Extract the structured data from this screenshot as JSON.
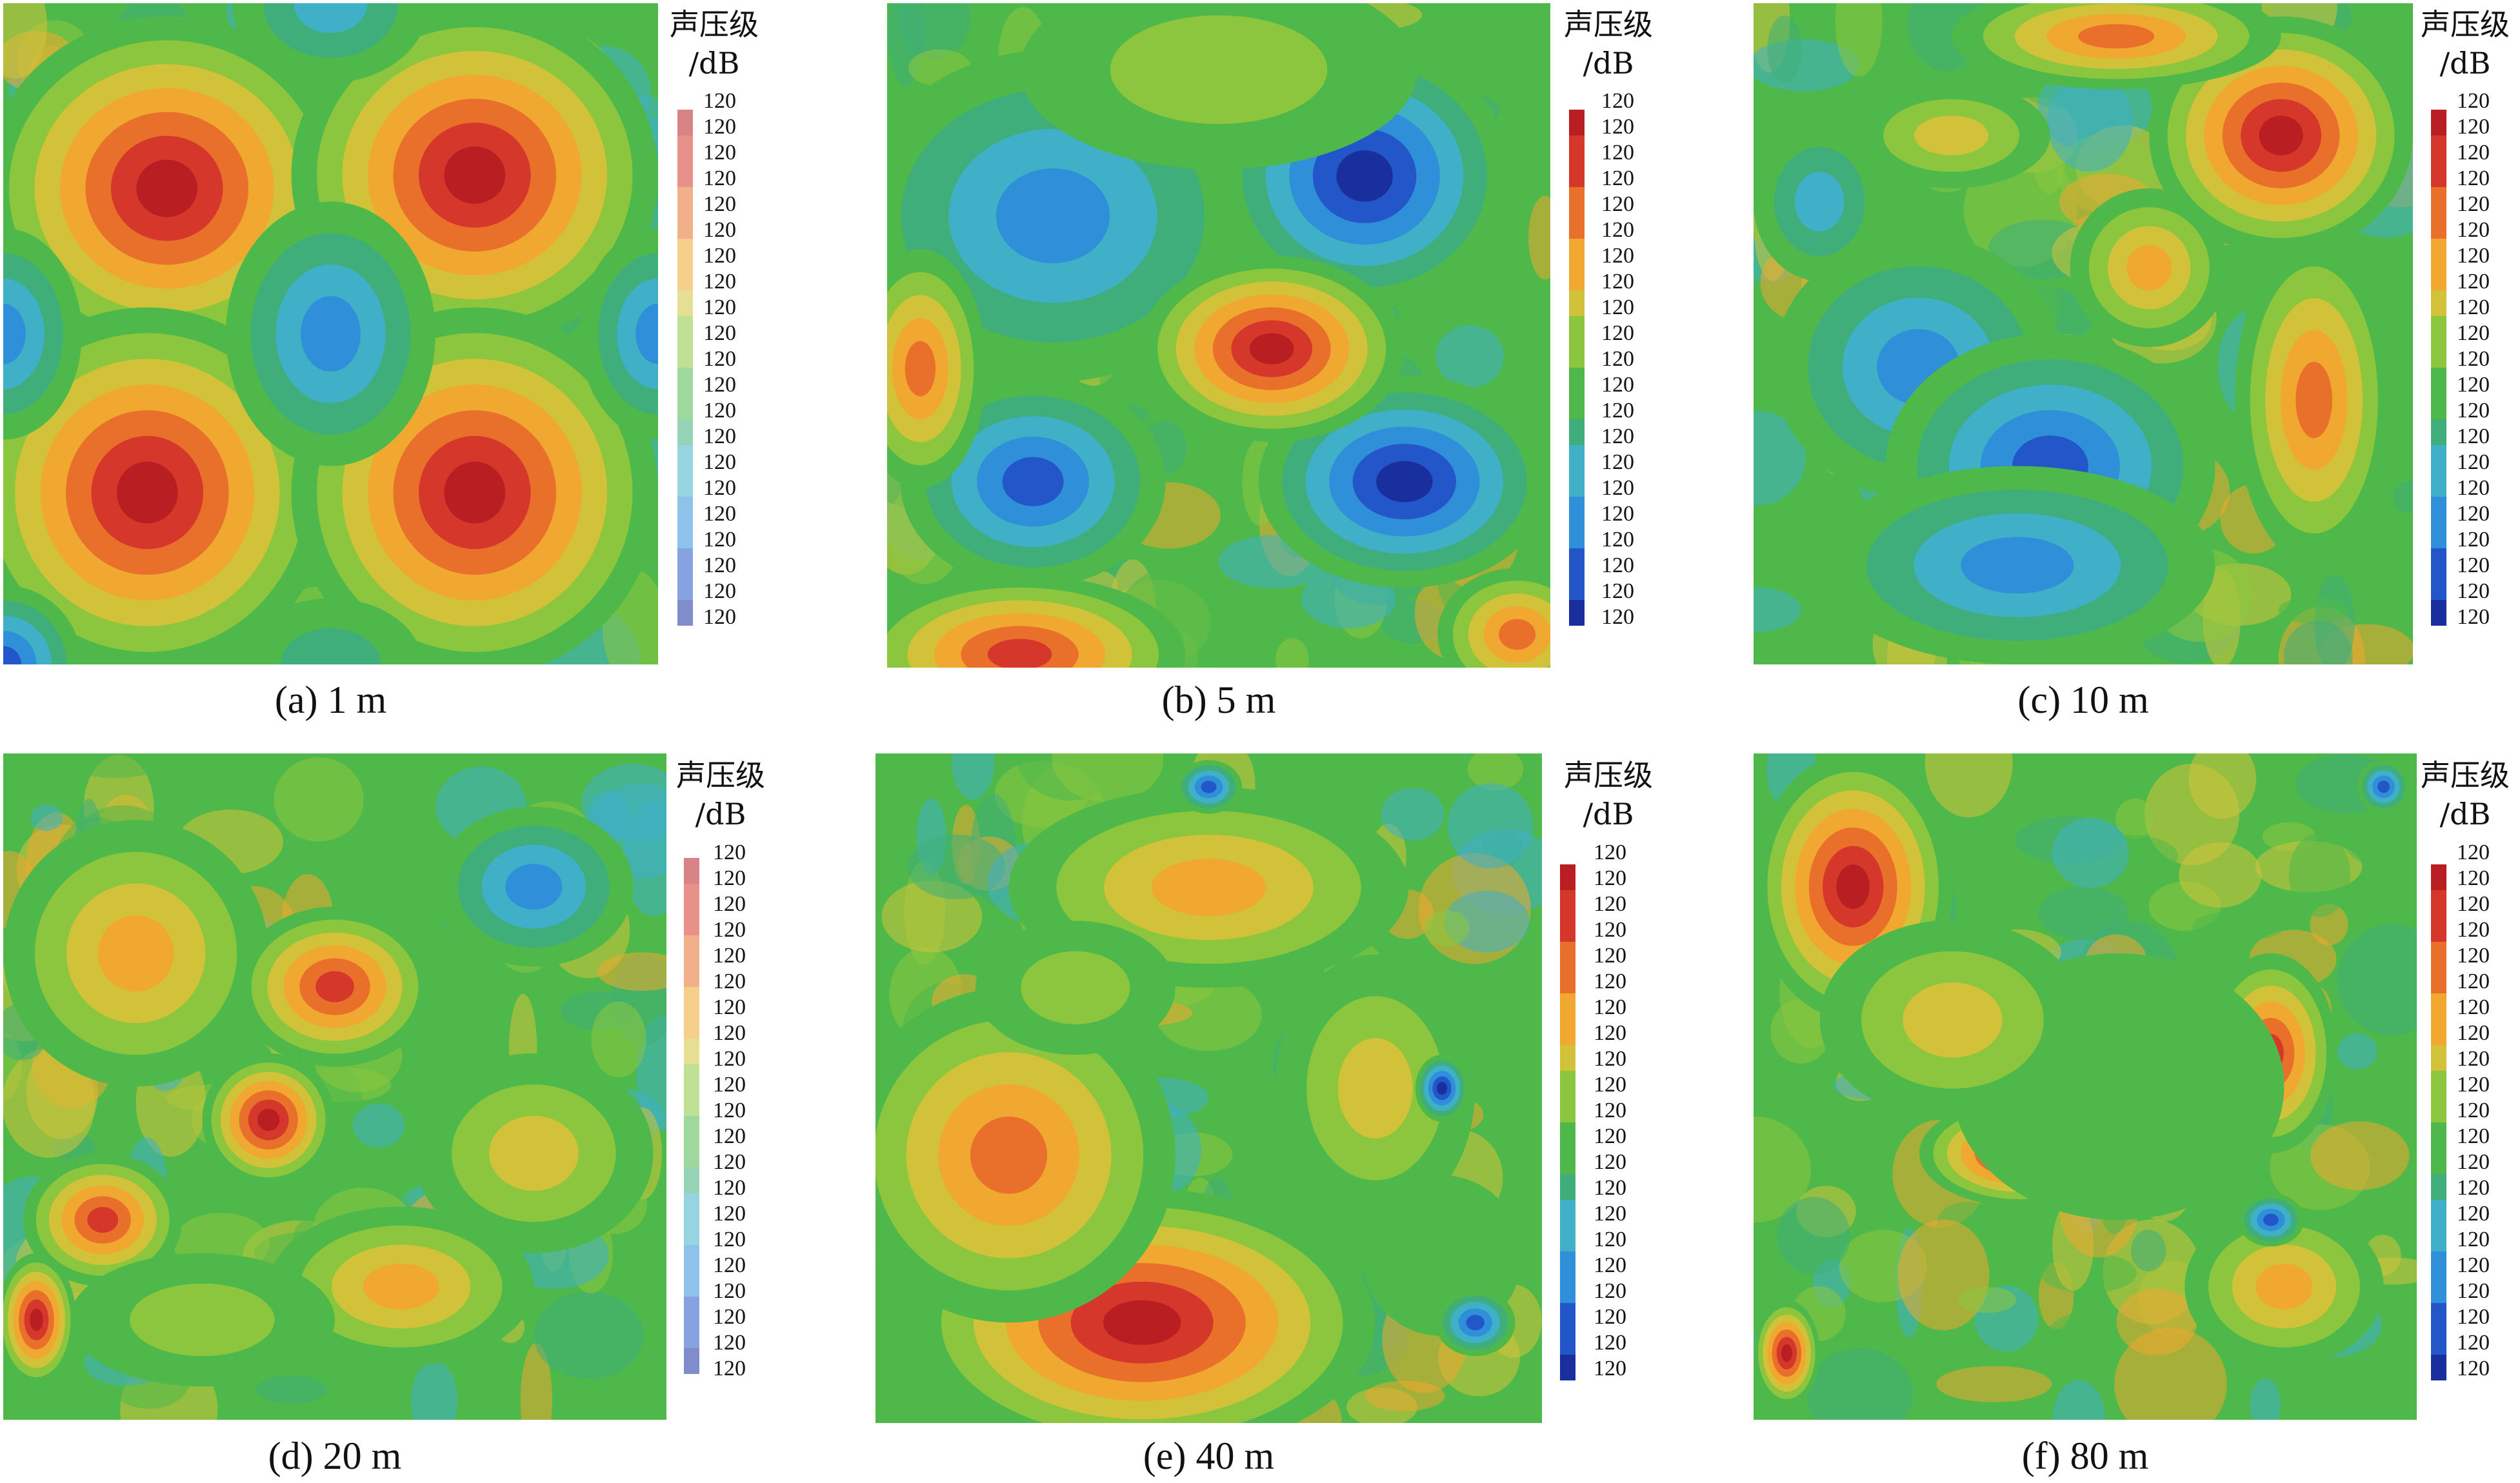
{
  "chart_data": [
    {
      "type": "heatmap",
      "caption": "(a) 1 m",
      "colorbar_title_line1": "声压级",
      "colorbar_title_line2": "/dB",
      "colorbar_ticks": [
        "120",
        "120",
        "120",
        "120",
        "120",
        "120",
        "120",
        "120",
        "120",
        "120",
        "120",
        "120",
        "120",
        "120",
        "120",
        "120",
        "120",
        "120",
        "120",
        "120",
        "120"
      ],
      "colorscale": [
        "#1a2f9e",
        "#2356c8",
        "#2f8fd8",
        "#3fb0c8",
        "#3fae7a",
        "#4fb84a",
        "#8cc63f",
        "#d2c23a",
        "#f0a830",
        "#e8702a",
        "#d5372a",
        "#b81e22"
      ],
      "pattern": "p1m"
    },
    {
      "type": "heatmap",
      "caption": "(b) 5 m",
      "colorbar_title_line1": "声压级",
      "colorbar_title_line2": "/dB",
      "colorbar_ticks": [
        "120",
        "120",
        "120",
        "120",
        "120",
        "120",
        "120",
        "120",
        "120",
        "120",
        "120",
        "120",
        "120",
        "120",
        "120",
        "120",
        "120",
        "120",
        "120",
        "120",
        "120"
      ],
      "colorscale": [
        "#1a2f9e",
        "#2356c8",
        "#2f8fd8",
        "#3fb0c8",
        "#3fae7a",
        "#4fb84a",
        "#8cc63f",
        "#d2c23a",
        "#f0a830",
        "#e8702a",
        "#d5372a",
        "#b81e22"
      ],
      "pattern": "p5m"
    },
    {
      "type": "heatmap",
      "caption": "(c) 10 m",
      "colorbar_title_line1": "声压级",
      "colorbar_title_line2": "/dB",
      "colorbar_ticks": [
        "120",
        "120",
        "120",
        "120",
        "120",
        "120",
        "120",
        "120",
        "120",
        "120",
        "120",
        "120",
        "120",
        "120",
        "120",
        "120",
        "120",
        "120",
        "120",
        "120",
        "120"
      ],
      "colorscale": [
        "#1a2f9e",
        "#2356c8",
        "#2f8fd8",
        "#3fb0c8",
        "#3fae7a",
        "#4fb84a",
        "#8cc63f",
        "#d2c23a",
        "#f0a830",
        "#e8702a",
        "#d5372a",
        "#b81e22"
      ],
      "pattern": "p10m"
    },
    {
      "type": "heatmap",
      "caption": "(d) 20 m",
      "colorbar_title_line1": "声压级",
      "colorbar_title_line2": "/dB",
      "colorbar_ticks": [
        "120",
        "120",
        "120",
        "120",
        "120",
        "120",
        "120",
        "120",
        "120",
        "120",
        "120",
        "120",
        "120",
        "120",
        "120",
        "120",
        "120",
        "120",
        "120",
        "120",
        "120"
      ],
      "colorscale": [
        "#1a2f9e",
        "#2356c8",
        "#2f8fd8",
        "#3fb0c8",
        "#3fae7a",
        "#4fb84a",
        "#8cc63f",
        "#d2c23a",
        "#f0a830",
        "#e8702a",
        "#d5372a",
        "#b81e22"
      ],
      "pattern": "p20m"
    },
    {
      "type": "heatmap",
      "caption": "(e) 40 m",
      "colorbar_title_line1": "声压级",
      "colorbar_title_line2": "/dB",
      "colorbar_ticks": [
        "120",
        "120",
        "120",
        "120",
        "120",
        "120",
        "120",
        "120",
        "120",
        "120",
        "120",
        "120",
        "120",
        "120",
        "120",
        "120",
        "120",
        "120",
        "120",
        "120",
        "120"
      ],
      "colorscale": [
        "#1a2f9e",
        "#2356c8",
        "#2f8fd8",
        "#3fb0c8",
        "#3fae7a",
        "#4fb84a",
        "#8cc63f",
        "#d2c23a",
        "#f0a830",
        "#e8702a",
        "#d5372a",
        "#b81e22"
      ],
      "pattern": "p40m"
    },
    {
      "type": "heatmap",
      "caption": "(f) 80 m",
      "colorbar_title_line1": "声压级",
      "colorbar_title_line2": "/dB",
      "colorbar_ticks": [
        "120",
        "120",
        "120",
        "120",
        "120",
        "120",
        "120",
        "120",
        "120",
        "120",
        "120",
        "120",
        "120",
        "120",
        "120",
        "120",
        "120",
        "120",
        "120",
        "120",
        "120"
      ],
      "colorscale": [
        "#1a2f9e",
        "#2356c8",
        "#2f8fd8",
        "#3fb0c8",
        "#3fae7a",
        "#4fb84a",
        "#8cc63f",
        "#d2c23a",
        "#f0a830",
        "#e8702a",
        "#d5372a",
        "#b81e22"
      ],
      "pattern": "p80m"
    }
  ]
}
